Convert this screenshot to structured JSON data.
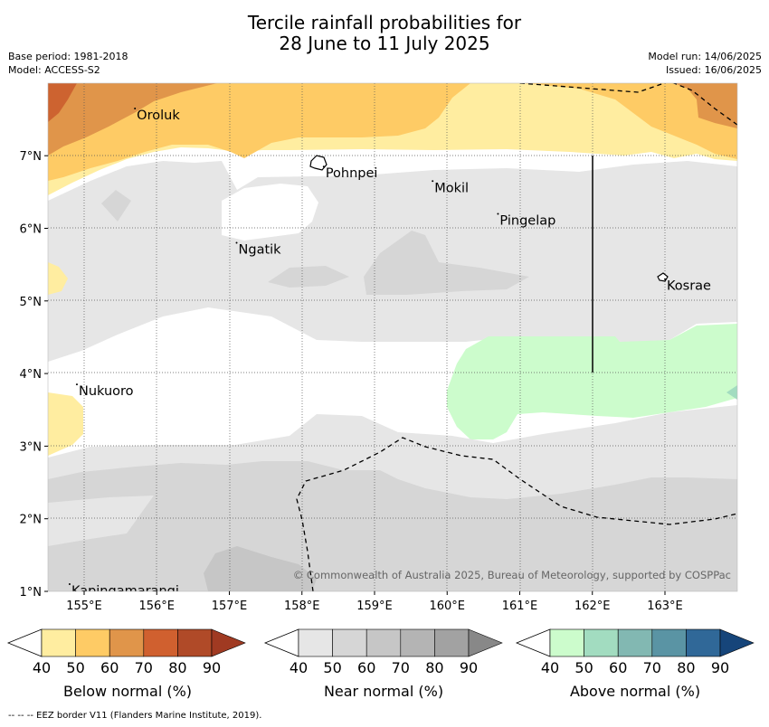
{
  "title_line1": "Tercile rainfall probabilities for",
  "title_line2": "28 June to 11 July 2025",
  "base_period": "Base period: 1981-2018",
  "model": "Model: ACCESS-S2",
  "model_run": "Model run: 14/06/2025",
  "issued": "Issued: 16/06/2025",
  "copyright": "© Commonwealth of Australia 2025, Bureau of Meteorology, supported by COSPPac",
  "footnote": "-- -- -- EEZ border V11 (Flanders Marine Institute, 2019).",
  "lon_ticks": [
    "155°E",
    "156°E",
    "157°E",
    "158°E",
    "159°E",
    "160°E",
    "161°E",
    "162°E",
    "163°E"
  ],
  "lat_ticks": [
    "1°N",
    "2°N",
    "3°N",
    "4°N",
    "5°N",
    "6°N",
    "7°N"
  ],
  "places": [
    {
      "name": "Oroluk",
      "lon": 155.7,
      "lat": 7.65
    },
    {
      "name": "Pohnpei",
      "lon": 158.3,
      "lat": 6.85
    },
    {
      "name": "Mokil",
      "lon": 159.8,
      "lat": 6.65
    },
    {
      "name": "Pingelap",
      "lon": 160.7,
      "lat": 6.2
    },
    {
      "name": "Ngatik",
      "lon": 157.1,
      "lat": 5.8
    },
    {
      "name": "Kosrae",
      "lon": 163.0,
      "lat": 5.3
    },
    {
      "name": "Nukuoro",
      "lon": 154.9,
      "lat": 3.85
    },
    {
      "name": "Kapingamarangi",
      "lon": 154.8,
      "lat": 1.1
    }
  ],
  "colorbars": [
    {
      "label": "Below normal (%)",
      "ticks": [
        "40",
        "50",
        "60",
        "70",
        "80",
        "90"
      ],
      "colors": [
        "#ffeda0",
        "#fecb65",
        "#e0954a",
        "#d0602f",
        "#b04a28",
        "#a03a22"
      ]
    },
    {
      "label": "Near normal (%)",
      "ticks": [
        "40",
        "50",
        "60",
        "70",
        "80",
        "90"
      ],
      "colors": [
        "#e6e6e6",
        "#d6d6d6",
        "#c6c6c6",
        "#b4b4b4",
        "#a2a2a2",
        "#888888"
      ]
    },
    {
      "label": "Above normal (%)",
      "ticks": [
        "40",
        "50",
        "60",
        "70",
        "80",
        "90"
      ],
      "colors": [
        "#ccfccc",
        "#a2dcc0",
        "#82b8b2",
        "#5a94a4",
        "#306898",
        "#16457a"
      ]
    }
  ]
}
